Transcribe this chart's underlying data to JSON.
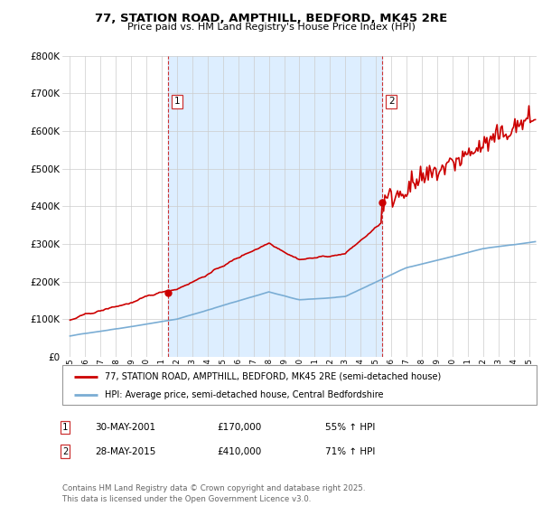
{
  "title1": "77, STATION ROAD, AMPTHILL, BEDFORD, MK45 2RE",
  "title2": "Price paid vs. HM Land Registry's House Price Index (HPI)",
  "legend_line1": "77, STATION ROAD, AMPTHILL, BEDFORD, MK45 2RE (semi-detached house)",
  "legend_line2": "HPI: Average price, semi-detached house, Central Bedfordshire",
  "footer": "Contains HM Land Registry data © Crown copyright and database right 2025.\nThis data is licensed under the Open Government Licence v3.0.",
  "sale1_date": "30-MAY-2001",
  "sale1_price": "£170,000",
  "sale1_hpi": "55% ↑ HPI",
  "sale2_date": "28-MAY-2015",
  "sale2_price": "£410,000",
  "sale2_hpi": "71% ↑ HPI",
  "sale1_x": 2001.41,
  "sale1_y": 170000,
  "sale2_x": 2015.41,
  "sale2_y": 410000,
  "red_color": "#cc0000",
  "blue_color": "#7aadd4",
  "shade_color": "#ddeeff",
  "dashed_color": "#cc3333",
  "background_color": "#ffffff",
  "grid_color": "#cccccc",
  "ylim_min": 0,
  "ylim_max": 800000,
  "xlim_min": 1994.5,
  "xlim_max": 2025.5,
  "yticks": [
    0,
    100000,
    200000,
    300000,
    400000,
    500000,
    600000,
    700000,
    800000
  ]
}
